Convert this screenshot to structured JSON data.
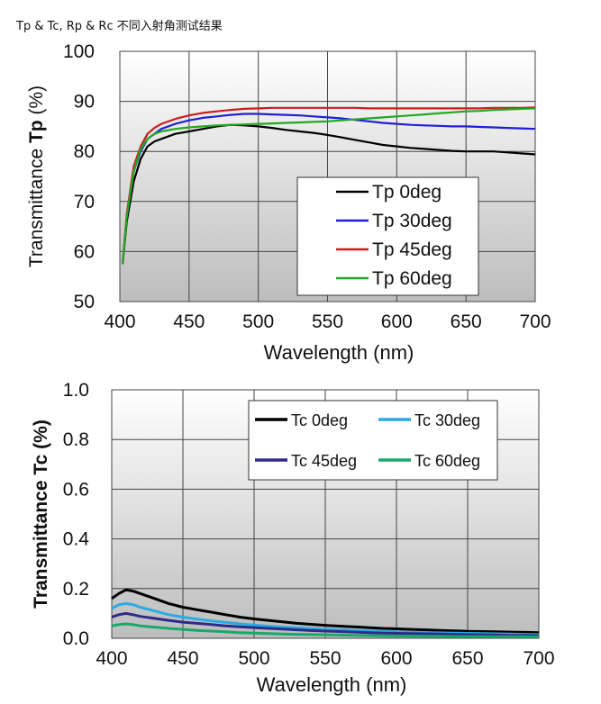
{
  "page": {
    "title": "Tp & Tc, Rp & Rc 不同入射角测试结果"
  },
  "chart_data": [
    {
      "type": "line",
      "title": "",
      "xlabel": "Wavelength (nm)",
      "ylabel_prefix": "Transmittance",
      "ylabel_bold": "Tp",
      "ylabel_suffix": "(%)",
      "xlim": [
        400,
        700
      ],
      "ylim": [
        50,
        100
      ],
      "xticks": [
        400,
        450,
        500,
        550,
        600,
        650,
        700
      ],
      "yticks": [
        50,
        60,
        70,
        80,
        90,
        100
      ],
      "grid": true,
      "legend_position": "bottom-right",
      "x": [
        402,
        405,
        410,
        415,
        420,
        425,
        430,
        440,
        450,
        460,
        470,
        480,
        490,
        500,
        510,
        520,
        530,
        540,
        550,
        560,
        570,
        580,
        590,
        600,
        610,
        620,
        630,
        640,
        650,
        660,
        670,
        680,
        690,
        700
      ],
      "series": [
        {
          "name": "Tp 0deg",
          "color": "#000000",
          "values": [
            57.5,
            66,
            74,
            78.5,
            81,
            82,
            82.5,
            83.5,
            84,
            84.5,
            85,
            85.3,
            85.2,
            85,
            84.7,
            84.3,
            84,
            83.7,
            83.3,
            82.8,
            82.3,
            81.8,
            81.3,
            81,
            80.7,
            80.5,
            80.3,
            80.1,
            80,
            80,
            80,
            79.8,
            79.6,
            79.4
          ]
        },
        {
          "name": "Tp 30deg",
          "color": "#1f1fd6",
          "values": [
            57.5,
            67,
            76,
            80,
            82.5,
            83.5,
            84.5,
            85.5,
            86.2,
            86.7,
            87,
            87.3,
            87.5,
            87.5,
            87.4,
            87.3,
            87.2,
            87,
            86.8,
            86.6,
            86.3,
            86,
            85.7,
            85.5,
            85.3,
            85.2,
            85.1,
            85,
            85,
            84.9,
            84.8,
            84.7,
            84.6,
            84.5
          ]
        },
        {
          "name": "Tp 45deg",
          "color": "#c81e1e",
          "values": [
            57.5,
            67.5,
            77,
            81,
            83.5,
            84.7,
            85.5,
            86.5,
            87.2,
            87.7,
            88,
            88.3,
            88.5,
            88.6,
            88.7,
            88.7,
            88.7,
            88.7,
            88.7,
            88.7,
            88.7,
            88.6,
            88.6,
            88.6,
            88.6,
            88.6,
            88.6,
            88.6,
            88.6,
            88.6,
            88.7,
            88.7,
            88.7,
            88.8
          ]
        },
        {
          "name": "Tp 60deg",
          "color": "#22a822",
          "values": [
            57.5,
            67,
            76,
            80.5,
            82.5,
            83.5,
            84,
            84.5,
            84.8,
            85,
            85.2,
            85.3,
            85.4,
            85.5,
            85.6,
            85.7,
            85.8,
            85.9,
            86,
            86.2,
            86.4,
            86.6,
            86.8,
            87,
            87.2,
            87.4,
            87.6,
            87.8,
            88,
            88.1,
            88.3,
            88.4,
            88.5,
            88.6
          ]
        }
      ]
    },
    {
      "type": "line",
      "title": "",
      "xlabel": "Wavelength (nm)",
      "ylabel_prefix": "Transmittance",
      "ylabel_bold": "Tc",
      "ylabel_suffix": "(%)",
      "xlim": [
        400,
        700
      ],
      "ylim": [
        0.0,
        1.0
      ],
      "xticks": [
        400,
        450,
        500,
        550,
        600,
        650,
        700
      ],
      "yticks": [
        "0.0",
        "0.2",
        "0.4",
        "0.6",
        "0.8",
        "1.0"
      ],
      "grid": true,
      "legend_position": "top-right",
      "x": [
        400,
        405,
        410,
        415,
        420,
        430,
        440,
        450,
        460,
        470,
        480,
        490,
        500,
        510,
        520,
        530,
        540,
        550,
        560,
        570,
        580,
        590,
        600,
        610,
        620,
        630,
        640,
        650,
        660,
        670,
        680,
        690,
        700
      ],
      "series": [
        {
          "name": "Tc 0deg",
          "color": "#000000",
          "values": [
            0.16,
            0.18,
            0.195,
            0.19,
            0.18,
            0.16,
            0.14,
            0.125,
            0.115,
            0.105,
            0.095,
            0.085,
            0.078,
            0.072,
            0.066,
            0.06,
            0.056,
            0.052,
            0.049,
            0.046,
            0.043,
            0.04,
            0.038,
            0.036,
            0.034,
            0.032,
            0.03,
            0.028,
            0.027,
            0.026,
            0.025,
            0.024,
            0.023
          ]
        },
        {
          "name": "Tc 30deg",
          "color": "#29abe2",
          "values": [
            0.12,
            0.135,
            0.14,
            0.135,
            0.125,
            0.11,
            0.095,
            0.085,
            0.077,
            0.07,
            0.064,
            0.058,
            0.053,
            0.049,
            0.045,
            0.042,
            0.039,
            0.036,
            0.034,
            0.032,
            0.03,
            0.028,
            0.026,
            0.024,
            0.023,
            0.022,
            0.021,
            0.02,
            0.019,
            0.018,
            0.017,
            0.016,
            0.015
          ]
        },
        {
          "name": "Tc 45deg",
          "color": "#2e2a8a",
          "values": [
            0.085,
            0.095,
            0.1,
            0.095,
            0.088,
            0.08,
            0.072,
            0.065,
            0.06,
            0.055,
            0.05,
            0.046,
            0.043,
            0.04,
            0.037,
            0.034,
            0.031,
            0.029,
            0.027,
            0.025,
            0.023,
            0.021,
            0.02,
            0.019,
            0.018,
            0.017,
            0.016,
            0.015,
            0.014,
            0.013,
            0.012,
            0.012,
            0.011
          ]
        },
        {
          "name": "Tc 60deg",
          "color": "#1aa86a",
          "values": [
            0.05,
            0.055,
            0.058,
            0.055,
            0.05,
            0.045,
            0.04,
            0.036,
            0.032,
            0.029,
            0.026,
            0.023,
            0.021,
            0.019,
            0.017,
            0.016,
            0.015,
            0.014,
            0.013,
            0.012,
            0.011,
            0.01,
            0.009,
            0.009,
            0.008,
            0.008,
            0.007,
            0.007,
            0.007,
            0.006,
            0.006,
            0.006,
            0.006
          ]
        }
      ]
    }
  ]
}
